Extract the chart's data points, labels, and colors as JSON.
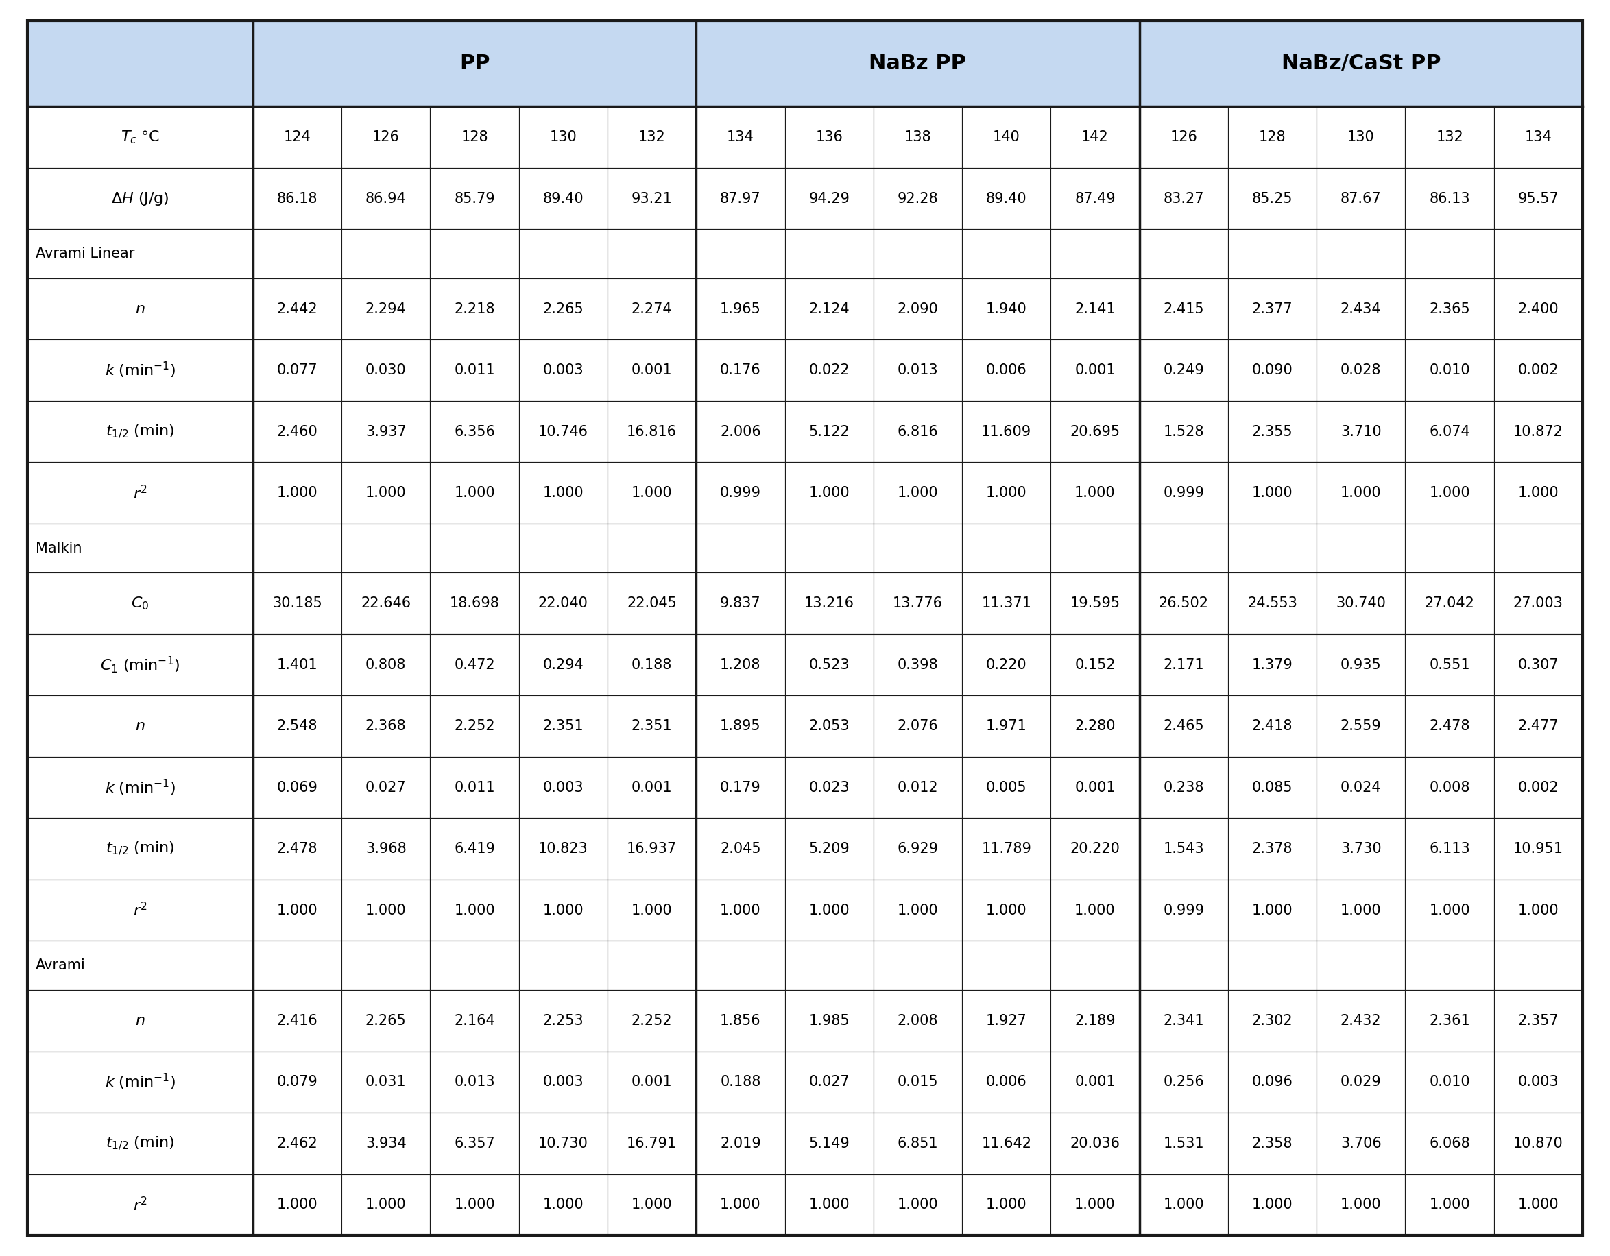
{
  "header_bg": "#c5d9f1",
  "cell_bg_white": "#ffffff",
  "border_color": "#1a1a1a",
  "text_color": "#000000",
  "pp_temps": [
    "124",
    "126",
    "128",
    "130",
    "132"
  ],
  "nabz_temps": [
    "134",
    "136",
    "138",
    "140",
    "142"
  ],
  "nabzcast_temps": [
    "126",
    "128",
    "130",
    "132",
    "134"
  ],
  "data": {
    "DH": {
      "PP": [
        "86.18",
        "86.94",
        "85.79",
        "89.40",
        "93.21"
      ],
      "NaBz PP": [
        "87.97",
        "94.29",
        "92.28",
        "89.40",
        "87.49"
      ],
      "NaBz/CaSt PP": [
        "83.27",
        "85.25",
        "87.67",
        "86.13",
        "95.57"
      ]
    },
    "AL_n": {
      "PP": [
        "2.442",
        "2.294",
        "2.218",
        "2.265",
        "2.274"
      ],
      "NaBz PP": [
        "1.965",
        "2.124",
        "2.090",
        "1.940",
        "2.141"
      ],
      "NaBz/CaSt PP": [
        "2.415",
        "2.377",
        "2.434",
        "2.365",
        "2.400"
      ]
    },
    "AL_k": {
      "PP": [
        "0.077",
        "0.030",
        "0.011",
        "0.003",
        "0.001"
      ],
      "NaBz PP": [
        "0.176",
        "0.022",
        "0.013",
        "0.006",
        "0.001"
      ],
      "NaBz/CaSt PP": [
        "0.249",
        "0.090",
        "0.028",
        "0.010",
        "0.002"
      ]
    },
    "AL_t": {
      "PP": [
        "2.460",
        "3.937",
        "6.356",
        "10.746",
        "16.816"
      ],
      "NaBz PP": [
        "2.006",
        "5.122",
        "6.816",
        "11.609",
        "20.695"
      ],
      "NaBz/CaSt PP": [
        "1.528",
        "2.355",
        "3.710",
        "6.074",
        "10.872"
      ]
    },
    "AL_r2": {
      "PP": [
        "1.000",
        "1.000",
        "1.000",
        "1.000",
        "1.000"
      ],
      "NaBz PP": [
        "0.999",
        "1.000",
        "1.000",
        "1.000",
        "1.000"
      ],
      "NaBz/CaSt PP": [
        "0.999",
        "1.000",
        "1.000",
        "1.000",
        "1.000"
      ]
    },
    "M_C0": {
      "PP": [
        "30.185",
        "22.646",
        "18.698",
        "22.040",
        "22.045"
      ],
      "NaBz PP": [
        "9.837",
        "13.216",
        "13.776",
        "11.371",
        "19.595"
      ],
      "NaBz/CaSt PP": [
        "26.502",
        "24.553",
        "30.740",
        "27.042",
        "27.003"
      ]
    },
    "M_C1": {
      "PP": [
        "1.401",
        "0.808",
        "0.472",
        "0.294",
        "0.188"
      ],
      "NaBz PP": [
        "1.208",
        "0.523",
        "0.398",
        "0.220",
        "0.152"
      ],
      "NaBz/CaSt PP": [
        "2.171",
        "1.379",
        "0.935",
        "0.551",
        "0.307"
      ]
    },
    "M_n": {
      "PP": [
        "2.548",
        "2.368",
        "2.252",
        "2.351",
        "2.351"
      ],
      "NaBz PP": [
        "1.895",
        "2.053",
        "2.076",
        "1.971",
        "2.280"
      ],
      "NaBz/CaSt PP": [
        "2.465",
        "2.418",
        "2.559",
        "2.478",
        "2.477"
      ]
    },
    "M_k": {
      "PP": [
        "0.069",
        "0.027",
        "0.011",
        "0.003",
        "0.001"
      ],
      "NaBz PP": [
        "0.179",
        "0.023",
        "0.012",
        "0.005",
        "0.001"
      ],
      "NaBz/CaSt PP": [
        "0.238",
        "0.085",
        "0.024",
        "0.008",
        "0.002"
      ]
    },
    "M_t": {
      "PP": [
        "2.478",
        "3.968",
        "6.419",
        "10.823",
        "16.937"
      ],
      "NaBz PP": [
        "2.045",
        "5.209",
        "6.929",
        "11.789",
        "20.220"
      ],
      "NaBz/CaSt PP": [
        "1.543",
        "2.378",
        "3.730",
        "6.113",
        "10.951"
      ]
    },
    "M_r2": {
      "PP": [
        "1.000",
        "1.000",
        "1.000",
        "1.000",
        "1.000"
      ],
      "NaBz PP": [
        "1.000",
        "1.000",
        "1.000",
        "1.000",
        "1.000"
      ],
      "NaBz/CaSt PP": [
        "0.999",
        "1.000",
        "1.000",
        "1.000",
        "1.000"
      ]
    },
    "A_n": {
      "PP": [
        "2.416",
        "2.265",
        "2.164",
        "2.253",
        "2.252"
      ],
      "NaBz PP": [
        "1.856",
        "1.985",
        "2.008",
        "1.927",
        "2.189"
      ],
      "NaBz/CaSt PP": [
        "2.341",
        "2.302",
        "2.432",
        "2.361",
        "2.357"
      ]
    },
    "A_k": {
      "PP": [
        "0.079",
        "0.031",
        "0.013",
        "0.003",
        "0.001"
      ],
      "NaBz PP": [
        "0.188",
        "0.027",
        "0.015",
        "0.006",
        "0.001"
      ],
      "NaBz/CaSt PP": [
        "0.256",
        "0.096",
        "0.029",
        "0.010",
        "0.003"
      ]
    },
    "A_t": {
      "PP": [
        "2.462",
        "3.934",
        "6.357",
        "10.730",
        "16.791"
      ],
      "NaBz PP": [
        "2.019",
        "5.149",
        "6.851",
        "11.642",
        "20.036"
      ],
      "NaBz/CaSt PP": [
        "1.531",
        "2.358",
        "3.706",
        "6.068",
        "10.870"
      ]
    },
    "A_r2": {
      "PP": [
        "1.000",
        "1.000",
        "1.000",
        "1.000",
        "1.000"
      ],
      "NaBz PP": [
        "1.000",
        "1.000",
        "1.000",
        "1.000",
        "1.000"
      ],
      "NaBz/CaSt PP": [
        "1.000",
        "1.000",
        "1.000",
        "1.000",
        "1.000"
      ]
    }
  }
}
